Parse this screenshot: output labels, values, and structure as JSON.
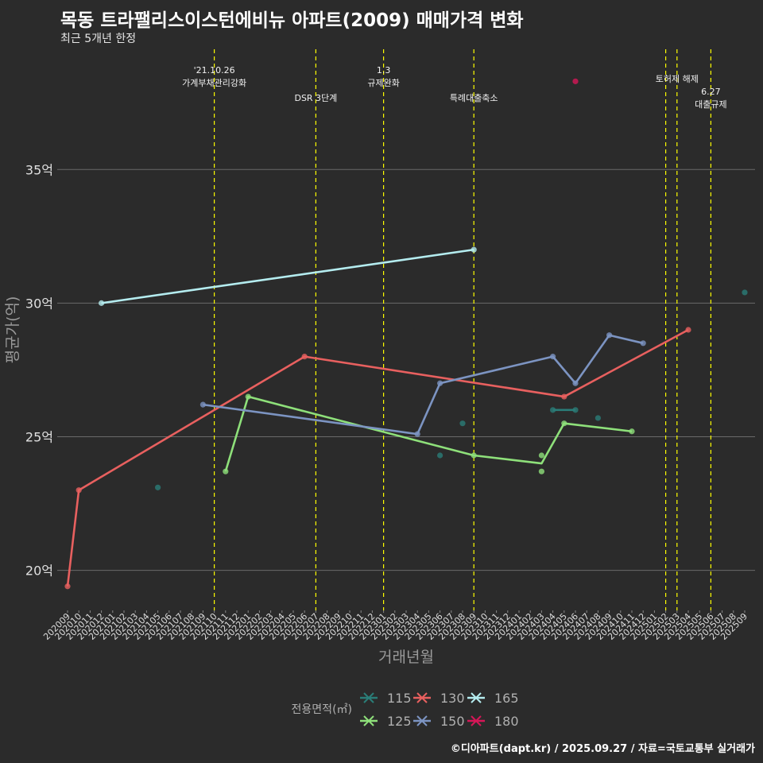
{
  "title": "목동 트라팰리스이스턴에비뉴 아파트(2009) 매매가격 변화",
  "subtitle": "최근 5개년 한정",
  "caption": "©디아파트(dapt.kr) / 2025.09.27 / 자료=국토교통부 실거래가",
  "colors": {
    "background": "#2b2b2b",
    "grid": "#6a6a6a",
    "event_line": "#ffff00",
    "s115": "#2a7d78",
    "s125": "#8ee07a",
    "s130": "#e8605f",
    "s150": "#7c94c2",
    "s165": "#b4ecef",
    "s180": "#d61657"
  },
  "chart_data": {
    "type": "line",
    "title": "목동 트라팰리스이스턴에비뉴 아파트(2009) 매매가격 변화",
    "subtitle": "최근 5개년 한정",
    "xlabel": "거래년월",
    "ylabel": "평균가(억)",
    "ylim": [
      18.5,
      39.5
    ],
    "yticks": [
      20,
      25,
      30,
      35
    ],
    "ytick_labels": [
      "20억",
      "25억",
      "30억",
      "35억"
    ],
    "grid": true,
    "x_categories": [
      "202009",
      "202010",
      "202011",
      "202012",
      "202101",
      "202102",
      "202103",
      "202104",
      "202105",
      "202106",
      "202107",
      "202108",
      "202109",
      "202110",
      "202111",
      "202112",
      "202201",
      "202202",
      "202203",
      "202204",
      "202205",
      "202206",
      "202207",
      "202208",
      "202209",
      "202210",
      "202211",
      "202212",
      "202301",
      "202302",
      "202303",
      "202304",
      "202305",
      "202306",
      "202307",
      "202308",
      "202309",
      "202310",
      "202311",
      "202312",
      "202401",
      "202402",
      "202403",
      "202404",
      "202405",
      "202406",
      "202407",
      "202408",
      "202409",
      "202410",
      "202411",
      "202412",
      "202501",
      "202502",
      "202503",
      "202504",
      "202505",
      "202506",
      "202507",
      "202508",
      "202509"
    ],
    "legend": {
      "title": "전용면적(㎡)",
      "position": "bottom",
      "entries": [
        {
          "key": "115",
          "color": "#2a7d78"
        },
        {
          "key": "125",
          "color": "#8ee07a"
        },
        {
          "key": "130",
          "color": "#e8605f"
        },
        {
          "key": "150",
          "color": "#7c94c2"
        },
        {
          "key": "165",
          "color": "#b4ecef"
        },
        {
          "key": "180",
          "color": "#d61657"
        }
      ]
    },
    "series": [
      {
        "name": "115",
        "color": "#2a7d78",
        "line": [
          {
            "x": "202404",
            "y": 26.0
          },
          {
            "x": "202406",
            "y": 26.0
          }
        ],
        "points": [
          {
            "x": "202105",
            "y": 23.1
          },
          {
            "x": "202306",
            "y": 24.3
          },
          {
            "x": "202308",
            "y": 25.5
          },
          {
            "x": "202404",
            "y": 26.0
          },
          {
            "x": "202406",
            "y": 26.0
          },
          {
            "x": "202408",
            "y": 25.7
          },
          {
            "x": "202509",
            "y": 30.4
          }
        ]
      },
      {
        "name": "125",
        "color": "#8ee07a",
        "line": [
          {
            "x": "202111",
            "y": 23.7
          },
          {
            "x": "202201",
            "y": 26.5
          },
          {
            "x": "202309",
            "y": 24.3
          },
          {
            "x": "202403",
            "y": 24.0
          },
          {
            "x": "202405",
            "y": 25.5
          },
          {
            "x": "202411",
            "y": 25.2
          }
        ],
        "points": [
          {
            "x": "202111",
            "y": 23.7
          },
          {
            "x": "202201",
            "y": 26.5
          },
          {
            "x": "202309",
            "y": 24.3
          },
          {
            "x": "202403",
            "y": 24.3
          },
          {
            "x": "202403",
            "y": 23.7
          },
          {
            "x": "202405",
            "y": 25.5
          },
          {
            "x": "202411",
            "y": 25.2
          }
        ]
      },
      {
        "name": "130",
        "color": "#e8605f",
        "line": [
          {
            "x": "202009",
            "y": 19.4
          },
          {
            "x": "202010",
            "y": 23.0
          },
          {
            "x": "202206",
            "y": 28.0
          },
          {
            "x": "202405",
            "y": 26.5
          },
          {
            "x": "202504",
            "y": 29.0
          }
        ],
        "points": [
          {
            "x": "202009",
            "y": 19.4
          },
          {
            "x": "202010",
            "y": 23.0
          },
          {
            "x": "202206",
            "y": 28.0
          },
          {
            "x": "202405",
            "y": 26.5
          },
          {
            "x": "202504",
            "y": 29.0
          }
        ]
      },
      {
        "name": "150",
        "color": "#7c94c2",
        "line": [
          {
            "x": "202109",
            "y": 26.2
          },
          {
            "x": "202304",
            "y": 25.1
          },
          {
            "x": "202306",
            "y": 27.0
          },
          {
            "x": "202404",
            "y": 28.0
          },
          {
            "x": "202406",
            "y": 27.0
          },
          {
            "x": "202409",
            "y": 28.8
          },
          {
            "x": "202412",
            "y": 28.5
          }
        ],
        "points": [
          {
            "x": "202109",
            "y": 26.2
          },
          {
            "x": "202304",
            "y": 25.1
          },
          {
            "x": "202306",
            "y": 27.0
          },
          {
            "x": "202404",
            "y": 28.0
          },
          {
            "x": "202406",
            "y": 27.0
          },
          {
            "x": "202409",
            "y": 28.8
          },
          {
            "x": "202412",
            "y": 28.5
          }
        ]
      },
      {
        "name": "165",
        "color": "#b4ecef",
        "line": [
          {
            "x": "202012",
            "y": 30.0
          },
          {
            "x": "202309",
            "y": 32.0
          }
        ],
        "points": [
          {
            "x": "202012",
            "y": 30.0
          },
          {
            "x": "202309",
            "y": 32.0
          }
        ]
      },
      {
        "name": "180",
        "color": "#d61657",
        "line": [],
        "points": [
          {
            "x": "202406",
            "y": 38.3
          }
        ]
      }
    ],
    "events": [
      {
        "x": "202110",
        "label": "'21.10.26\n가계부채관리강화",
        "row": 0
      },
      {
        "x": "202207",
        "label": "DSR 3단계",
        "row": 2
      },
      {
        "x": "202301",
        "label": "1.3\n규제완화",
        "row": 0
      },
      {
        "x": "202309",
        "label": "특례대출축소",
        "row": 2
      },
      {
        "x": "202502",
        "label": "",
        "row": 1
      },
      {
        "x": "202503",
        "label": "토허제 해제",
        "row": 1
      },
      {
        "x": "202506",
        "label": "6.27\n대출규제",
        "row": 1.5
      }
    ]
  }
}
